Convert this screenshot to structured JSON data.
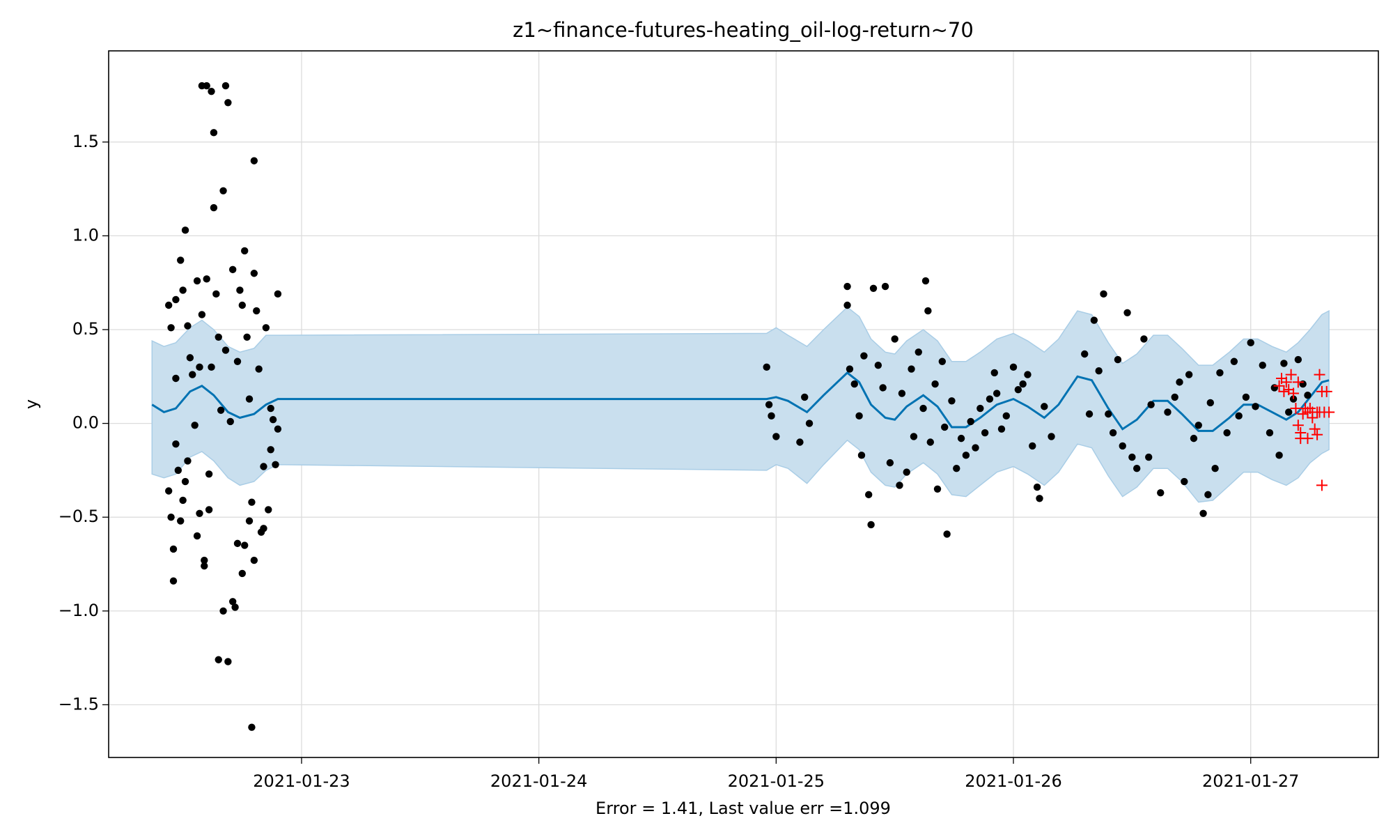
{
  "chart_data": {
    "type": "scatter",
    "title": "z1~finance-futures-heating_oil-log-return~70",
    "xlabel": "Error = 1.41, Last value err =1.099",
    "ylabel": "y",
    "xlim": [
      22.187,
      27.538
    ],
    "ylim": [
      -1.781,
      1.986
    ],
    "xticks": [
      {
        "value": 23,
        "label": "2021-01-23"
      },
      {
        "value": 24,
        "label": "2021-01-24"
      },
      {
        "value": 25,
        "label": "2021-01-25"
      },
      {
        "value": 26,
        "label": "2021-01-26"
      },
      {
        "value": 27,
        "label": "2021-01-27"
      }
    ],
    "yticks": [
      {
        "value": -1.5,
        "label": "−1.5"
      },
      {
        "value": -1.0,
        "label": "−1.0"
      },
      {
        "value": -0.5,
        "label": "−0.5"
      },
      {
        "value": 0.0,
        "label": "0.0"
      },
      0.5,
      {
        "value": 1.0,
        "label": "1.0"
      },
      1.5
    ],
    "grid": true,
    "band_color": "#c9dfee",
    "band_edge_color": "#a9cde6",
    "line": {
      "color": "#0072b2",
      "x": [
        22.37,
        22.42,
        22.47,
        22.53,
        22.58,
        22.63,
        22.69,
        22.74,
        22.8,
        22.85,
        22.9,
        24.96,
        25.0,
        25.05,
        25.13,
        25.2,
        25.3,
        25.35,
        25.4,
        25.46,
        25.5,
        25.55,
        25.62,
        25.68,
        25.74,
        25.8,
        25.86,
        25.93,
        26.0,
        26.06,
        26.13,
        26.19,
        26.27,
        26.33,
        26.4,
        26.46,
        26.52,
        26.59,
        26.65,
        26.71,
        26.78,
        26.84,
        26.91,
        26.97,
        27.03,
        27.09,
        27.15,
        27.2,
        27.25,
        27.3,
        27.33
      ],
      "values": [
        0.1,
        0.06,
        0.08,
        0.17,
        0.2,
        0.15,
        0.06,
        0.03,
        0.05,
        0.1,
        0.13,
        0.13,
        0.14,
        0.12,
        0.06,
        0.15,
        0.27,
        0.22,
        0.1,
        0.03,
        0.02,
        0.09,
        0.15,
        0.09,
        -0.02,
        -0.02,
        0.03,
        0.1,
        0.13,
        0.09,
        0.03,
        0.1,
        0.25,
        0.23,
        0.08,
        -0.03,
        0.02,
        0.12,
        0.12,
        0.05,
        -0.04,
        -0.04,
        0.03,
        0.1,
        0.1,
        0.06,
        0.02,
        0.06,
        0.14,
        0.22,
        0.23
      ],
      "upper": [
        0.44,
        0.41,
        0.43,
        0.51,
        0.55,
        0.5,
        0.41,
        0.38,
        0.4,
        0.47,
        0.47,
        0.48,
        0.51,
        0.47,
        0.41,
        0.5,
        0.62,
        0.57,
        0.45,
        0.38,
        0.37,
        0.44,
        0.5,
        0.44,
        0.33,
        0.33,
        0.38,
        0.45,
        0.48,
        0.44,
        0.38,
        0.45,
        0.6,
        0.58,
        0.43,
        0.32,
        0.37,
        0.47,
        0.47,
        0.4,
        0.31,
        0.31,
        0.38,
        0.45,
        0.45,
        0.41,
        0.38,
        0.43,
        0.5,
        0.58,
        0.6
      ],
      "lower": [
        -0.27,
        -0.29,
        -0.27,
        -0.18,
        -0.15,
        -0.2,
        -0.29,
        -0.33,
        -0.31,
        -0.25,
        -0.22,
        -0.25,
        -0.22,
        -0.24,
        -0.32,
        -0.22,
        -0.09,
        -0.14,
        -0.26,
        -0.33,
        -0.34,
        -0.27,
        -0.21,
        -0.27,
        -0.38,
        -0.39,
        -0.33,
        -0.26,
        -0.23,
        -0.27,
        -0.33,
        -0.26,
        -0.11,
        -0.13,
        -0.28,
        -0.39,
        -0.34,
        -0.24,
        -0.24,
        -0.31,
        -0.42,
        -0.41,
        -0.33,
        -0.26,
        -0.26,
        -0.3,
        -0.33,
        -0.29,
        -0.21,
        -0.16,
        -0.14
      ]
    },
    "series": [
      {
        "color": "#000000",
        "marker": "dot",
        "x": [
          22.44,
          22.45,
          22.44,
          22.45,
          22.46,
          22.46,
          22.47,
          22.47,
          22.47,
          22.48,
          22.49,
          22.49,
          22.5,
          22.5,
          22.51,
          22.51,
          22.52,
          22.52,
          22.53,
          22.54,
          22.55,
          22.56,
          22.56,
          22.57,
          22.57,
          22.58,
          22.58,
          22.59,
          22.59,
          22.6,
          22.6,
          22.61,
          22.61,
          22.62,
          22.62,
          22.63,
          22.63,
          22.64,
          22.65,
          22.65,
          22.66,
          22.67,
          22.67,
          22.68,
          22.68,
          22.69,
          22.69,
          22.7,
          22.71,
          22.71,
          22.72,
          22.73,
          22.73,
          22.74,
          22.75,
          22.75,
          22.76,
          22.76,
          22.77,
          22.78,
          22.78,
          22.79,
          22.8,
          22.8,
          22.8,
          22.81,
          22.82,
          22.83,
          22.84,
          22.84,
          22.85,
          22.86,
          22.87,
          22.87,
          22.88,
          22.89,
          22.9,
          22.9,
          22.79
        ],
        "values": [
          0.63,
          0.51,
          -0.36,
          -0.5,
          -0.67,
          -0.84,
          0.66,
          0.24,
          -0.11,
          -0.25,
          0.87,
          -0.52,
          0.71,
          -0.41,
          1.03,
          -0.31,
          0.52,
          -0.2,
          0.35,
          0.26,
          -0.01,
          -0.6,
          0.76,
          -0.48,
          0.3,
          1.8,
          0.58,
          -0.73,
          -0.76,
          1.8,
          0.77,
          -0.46,
          -0.27,
          1.77,
          0.3,
          1.15,
          1.55,
          0.69,
          0.46,
          -1.26,
          0.07,
          1.24,
          -1.0,
          1.8,
          0.39,
          1.71,
          -1.27,
          0.01,
          -0.95,
          0.82,
          -0.98,
          0.33,
          -0.64,
          0.71,
          0.63,
          -0.8,
          0.92,
          -0.65,
          0.46,
          0.13,
          -0.52,
          -0.42,
          1.4,
          0.8,
          -0.73,
          0.6,
          0.29,
          -0.58,
          -0.23,
          -0.56,
          0.51,
          -0.46,
          0.08,
          -0.14,
          0.02,
          -0.22,
          0.69,
          -0.03,
          -1.62
        ]
      },
      {
        "color": "#000000",
        "marker": "dot",
        "x": [
          24.96,
          24.97,
          24.98,
          25.0,
          25.1,
          25.12,
          25.14,
          25.3,
          25.3,
          25.31,
          25.33,
          25.35,
          25.36,
          25.37,
          25.39,
          25.4,
          25.41,
          25.43,
          25.45,
          25.46,
          25.48,
          25.5,
          25.52,
          25.53,
          25.55,
          25.57,
          25.58,
          25.6,
          25.62,
          25.63,
          25.64,
          25.65,
          25.67,
          25.68,
          25.7,
          25.71,
          25.72,
          25.74,
          25.76,
          25.78,
          25.8,
          25.82,
          25.84,
          25.86,
          25.88,
          25.9,
          25.92,
          25.93,
          25.95,
          25.97,
          26.0,
          26.02,
          26.04,
          26.06,
          26.08,
          26.1,
          26.11,
          26.13,
          26.16,
          26.3,
          26.32,
          26.34,
          26.36,
          26.38,
          26.4,
          26.42,
          26.44,
          26.46,
          26.48,
          26.5,
          26.52,
          26.55,
          26.57,
          26.58,
          26.62,
          26.65,
          26.68,
          26.7,
          26.72,
          26.74,
          26.76,
          26.78,
          26.8,
          26.82,
          26.83,
          26.85,
          26.87,
          26.9,
          26.93,
          26.95,
          26.98,
          27.0,
          27.02,
          27.05,
          27.08,
          27.1,
          27.12,
          27.14,
          27.16,
          27.18,
          27.2,
          27.22,
          27.24
        ],
        "values": [
          0.3,
          0.1,
          0.04,
          -0.07,
          -0.1,
          0.14,
          0.0,
          0.73,
          0.63,
          0.29,
          0.21,
          0.04,
          -0.17,
          0.36,
          -0.38,
          -0.54,
          0.72,
          0.31,
          0.19,
          0.73,
          -0.21,
          0.45,
          -0.33,
          0.16,
          -0.26,
          0.29,
          -0.07,
          0.38,
          0.08,
          0.76,
          0.6,
          -0.1,
          0.21,
          -0.35,
          0.33,
          -0.02,
          -0.59,
          0.12,
          -0.24,
          -0.08,
          -0.17,
          0.01,
          -0.13,
          0.08,
          -0.05,
          0.13,
          0.27,
          0.16,
          -0.03,
          0.04,
          0.3,
          0.18,
          0.21,
          0.26,
          -0.12,
          -0.34,
          -0.4,
          0.09,
          -0.07,
          0.37,
          0.05,
          0.55,
          0.28,
          0.69,
          0.05,
          -0.05,
          0.34,
          -0.12,
          0.59,
          -0.18,
          -0.24,
          0.45,
          -0.18,
          0.1,
          -0.37,
          0.06,
          0.14,
          0.22,
          -0.31,
          0.26,
          -0.08,
          -0.01,
          -0.48,
          -0.38,
          0.11,
          -0.24,
          0.27,
          -0.05,
          0.33,
          0.04,
          0.14,
          0.43,
          0.09,
          0.31,
          -0.05,
          0.19,
          -0.17,
          0.32,
          0.06,
          0.13,
          0.34,
          0.21,
          0.15
        ]
      },
      {
        "color": "#ff0000",
        "marker": "plus",
        "x": [
          27.12,
          27.13,
          27.14,
          27.15,
          27.16,
          27.17,
          27.18,
          27.19,
          27.2,
          27.2,
          27.21,
          27.21,
          27.22,
          27.23,
          27.24,
          27.24,
          27.25,
          27.26,
          27.26,
          27.27,
          27.28,
          27.28,
          27.29,
          27.29,
          27.3,
          27.3,
          27.31,
          27.32,
          27.33
        ],
        "values": [
          0.2,
          0.24,
          0.17,
          0.22,
          0.18,
          0.26,
          0.16,
          0.08,
          -0.01,
          0.22,
          -0.05,
          -0.08,
          0.05,
          0.08,
          -0.08,
          0.06,
          0.08,
          0.03,
          0.06,
          -0.03,
          -0.06,
          0.06,
          0.26,
          0.06,
          0.17,
          -0.33,
          0.06,
          0.17,
          0.06
        ]
      }
    ]
  }
}
